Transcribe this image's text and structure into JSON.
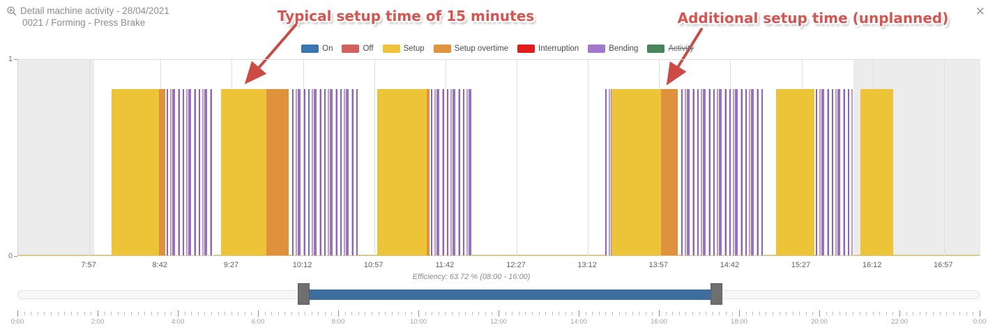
{
  "window": {
    "title": "Detail machine activity - 28/04/2021",
    "subtitle": "0021 / Forming - Press Brake",
    "close_label": "✕"
  },
  "annotations": [
    {
      "text": "Typical setup time of 15 minutes",
      "color": "#d9534f"
    },
    {
      "text": "Additional setup time (unplanned)",
      "color": "#d9534f"
    }
  ],
  "legend": {
    "items": [
      {
        "label": "On",
        "color": "#3b76af",
        "disabled": false
      },
      {
        "label": "Off",
        "color": "#d35f5f",
        "disabled": false
      },
      {
        "label": "Setup",
        "color": "#eec43a",
        "disabled": false
      },
      {
        "label": "Setup overtime",
        "color": "#e1943e",
        "disabled": false
      },
      {
        "label": "Interruption",
        "color": "#e21d1d",
        "disabled": false
      },
      {
        "label": "Bending",
        "color": "#a078cc",
        "disabled": false
      },
      {
        "label": "Activity",
        "color": "#47855c",
        "disabled": true
      }
    ]
  },
  "chart_data": {
    "type": "bar",
    "subtype": "machine-state-timeline",
    "title": "Detail machine activity - 28/04/2021",
    "ylim": [
      0,
      1
    ],
    "y_ticks": [
      "1",
      "0"
    ],
    "x_window": {
      "start": "7:12",
      "end": "17:20"
    },
    "working_hours": {
      "start": "8:00",
      "end": "16:00"
    },
    "x_ticks": [
      "7:57",
      "8:42",
      "9:27",
      "10:12",
      "10:57",
      "11:42",
      "12:27",
      "13:12",
      "13:57",
      "14:42",
      "15:27",
      "16:12",
      "16:57"
    ],
    "bar_value": 0.85,
    "segments": [
      {
        "start": "8:11",
        "end": "8:41",
        "type": "Setup"
      },
      {
        "start": "8:41",
        "end": "8:45",
        "type": "Setup overtime"
      },
      {
        "start": "8:46",
        "end": "9:16",
        "type": "Bending"
      },
      {
        "start": "9:20",
        "end": "9:49",
        "type": "Setup"
      },
      {
        "start": "9:49",
        "end": "10:03",
        "type": "Setup overtime"
      },
      {
        "start": "10:05",
        "end": "10:47",
        "type": "Bending"
      },
      {
        "start": "10:59",
        "end": "11:30",
        "type": "Setup"
      },
      {
        "start": "11:30",
        "end": "11:32",
        "type": "Setup overtime"
      },
      {
        "start": "11:33",
        "end": "11:59",
        "type": "Bending"
      },
      {
        "start": "13:23",
        "end": "13:27",
        "type": "Bending"
      },
      {
        "start": "13:27",
        "end": "13:58",
        "type": "Setup"
      },
      {
        "start": "13:58",
        "end": "14:09",
        "type": "Setup overtime"
      },
      {
        "start": "14:11",
        "end": "15:03",
        "type": "Bending"
      },
      {
        "start": "15:11",
        "end": "15:35",
        "type": "Setup"
      },
      {
        "start": "15:36",
        "end": "16:00",
        "type": "Bending"
      },
      {
        "start": "16:04",
        "end": "16:25",
        "type": "Setup"
      }
    ],
    "caption": "Efficiency: 63.72 % (08:00 - 16:00)",
    "colors": {
      "Setup": "#edc337",
      "Setup overtime": "#e0913c",
      "Bending": "#9a6fc6",
      "off_hours_band": "#ececec"
    }
  },
  "slider": {
    "selection_start": "7:08",
    "selection_end": "17:26",
    "color": "#3d6e9e"
  },
  "ruler": {
    "labels": [
      "0:00",
      "2:00",
      "4:00",
      "6:00",
      "8:00",
      "10:00",
      "12:00",
      "14:00",
      "16:00",
      "18:00",
      "20:00",
      "22:00",
      "0:00"
    ],
    "minor_tick_minutes": 10,
    "label_interval_minutes": 120
  }
}
